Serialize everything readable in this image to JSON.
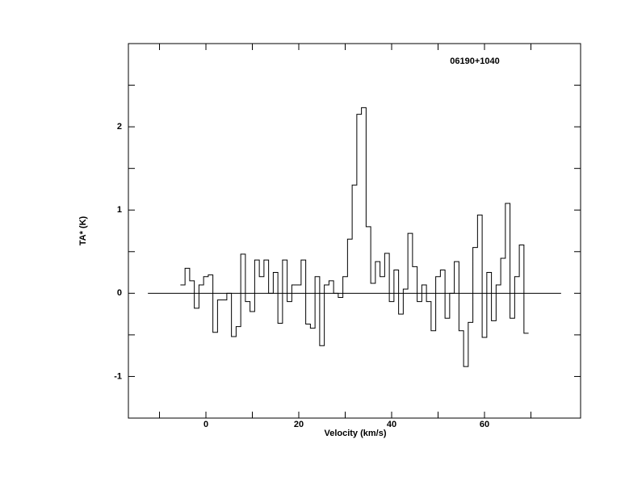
{
  "chart_data": {
    "type": "step",
    "title": "06190+1040",
    "xlabel": "Velocity (km/s)",
    "ylabel": "TA* (K)",
    "x": [
      -5,
      -4,
      -3,
      -2,
      -1,
      0,
      1,
      2,
      3,
      4,
      5,
      6,
      7,
      8,
      9,
      10,
      11,
      12,
      13,
      14,
      15,
      16,
      17,
      18,
      19,
      20,
      21,
      22,
      23,
      24,
      25,
      26,
      27,
      28,
      29,
      30,
      31,
      32,
      33,
      34,
      35,
      36,
      37,
      38,
      39,
      40,
      41,
      42,
      43,
      44,
      45,
      46,
      47,
      48,
      49,
      50,
      51,
      52,
      53,
      54,
      55,
      56,
      57,
      58,
      59,
      60,
      61,
      62,
      63,
      64,
      65,
      66,
      67,
      68,
      69
    ],
    "values": [
      0.1,
      0.3,
      0.15,
      -0.18,
      0.1,
      0.2,
      0.22,
      -0.47,
      -0.08,
      -0.08,
      0.0,
      -0.52,
      -0.4,
      0.47,
      -0.1,
      -0.22,
      0.4,
      0.2,
      0.4,
      0.0,
      0.25,
      -0.36,
      0.4,
      -0.1,
      0.1,
      0.1,
      0.4,
      -0.37,
      -0.42,
      0.2,
      -0.63,
      0.1,
      0.15,
      0.0,
      -0.05,
      0.2,
      0.65,
      1.3,
      2.15,
      2.23,
      0.8,
      0.12,
      0.38,
      0.2,
      0.48,
      -0.1,
      0.28,
      -0.25,
      0.05,
      0.72,
      0.32,
      -0.1,
      0.1,
      -0.1,
      -0.45,
      0.2,
      0.28,
      -0.3,
      0.0,
      0.38,
      -0.45,
      -0.88,
      -0.35,
      0.55,
      0.94,
      -0.53,
      0.25,
      -0.33,
      0.1,
      0.42,
      1.08,
      -0.3,
      0.2,
      0.58,
      -0.48
    ],
    "color": "#000000",
    "baseline": {
      "y": 0,
      "x": [
        -12.5,
        76.5
      ]
    },
    "xlim": [
      -16.7,
      80.7
    ],
    "ylim": [
      -1.5,
      3.0
    ],
    "xticks": [
      0,
      20,
      40,
      60
    ],
    "yticks": [
      -1,
      0,
      1,
      2
    ],
    "xminor_ticks": [
      -10,
      10,
      30,
      50,
      70
    ],
    "yminor_ticks": [
      -0.5,
      0.5,
      1.5,
      2.5
    ]
  }
}
